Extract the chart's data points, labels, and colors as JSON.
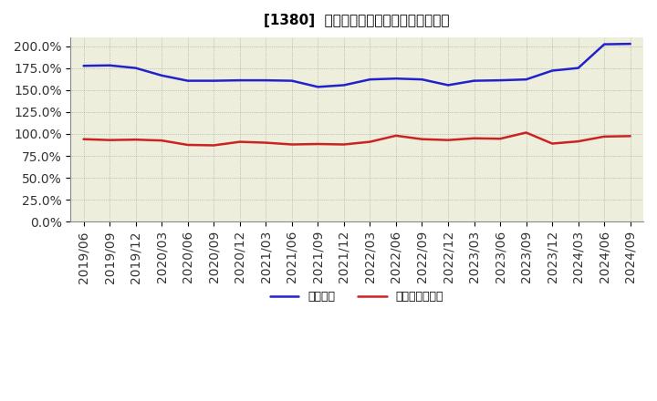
{
  "title": "[1380]  固定比率、固定長期適合率の推移",
  "x_labels": [
    "2019/06",
    "2019/09",
    "2019/12",
    "2020/03",
    "2020/06",
    "2020/09",
    "2020/12",
    "2021/03",
    "2021/06",
    "2021/09",
    "2021/12",
    "2022/03",
    "2022/06",
    "2022/09",
    "2022/12",
    "2023/03",
    "2023/06",
    "2023/09",
    "2023/12",
    "2024/03",
    "2024/06",
    "2024/09"
  ],
  "fixed_ratio": [
    177.5,
    178.0,
    175.0,
    166.5,
    160.5,
    160.5,
    161.0,
    161.0,
    160.5,
    153.5,
    155.5,
    162.0,
    163.0,
    162.0,
    155.5,
    160.5,
    161.0,
    162.0,
    172.0,
    175.0,
    202.0,
    202.5
  ],
  "fixed_long_ratio": [
    94.0,
    93.0,
    93.5,
    92.5,
    87.5,
    87.0,
    91.0,
    90.0,
    88.0,
    88.5,
    88.0,
    91.0,
    98.0,
    94.0,
    93.0,
    95.0,
    94.5,
    101.5,
    89.0,
    91.5,
    97.0,
    97.5
  ],
  "fixed_ratio_color": "#2222CC",
  "fixed_long_ratio_color": "#CC2222",
  "background_color": "#FFFFFF",
  "plot_bg_color": "#EEEEDD",
  "grid_color": "#888888",
  "ylim": [
    0,
    210
  ],
  "yticks": [
    0,
    25,
    50,
    75,
    100,
    125,
    150,
    175,
    200
  ],
  "ytick_labels": [
    "0.0%",
    "25.0%",
    "50.0%",
    "75.0%",
    "100.0%",
    "125.0%",
    "150.0%",
    "175.0%",
    "200.0%"
  ],
  "legend_fixed": "固定比率",
  "legend_fixed_long": "固定長期適合率",
  "title_fontsize": 11,
  "tick_fontsize": 7.5,
  "linewidth": 1.8
}
